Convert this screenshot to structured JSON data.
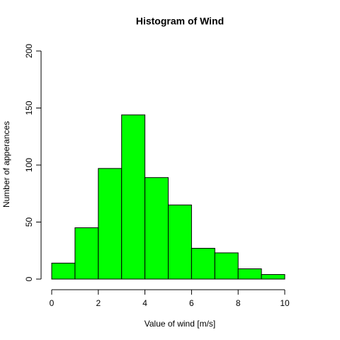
{
  "chart_data": {
    "type": "histogram",
    "title": "Histogram of Wind",
    "x_label": "Value of wind [m/s]",
    "y_label": "Number of apperances",
    "bins": [
      0,
      1,
      2,
      3,
      4,
      5,
      6,
      7,
      8,
      9,
      10
    ],
    "counts": [
      14,
      45,
      97,
      144,
      89,
      65,
      27,
      23,
      9,
      4
    ],
    "color": "#00ff00",
    "xlim": [
      0,
      10
    ],
    "xticks": [
      0,
      2,
      4,
      6,
      8,
      10
    ],
    "ylim": [
      0,
      200
    ],
    "yticks": [
      0,
      50,
      100,
      150,
      200
    ]
  }
}
